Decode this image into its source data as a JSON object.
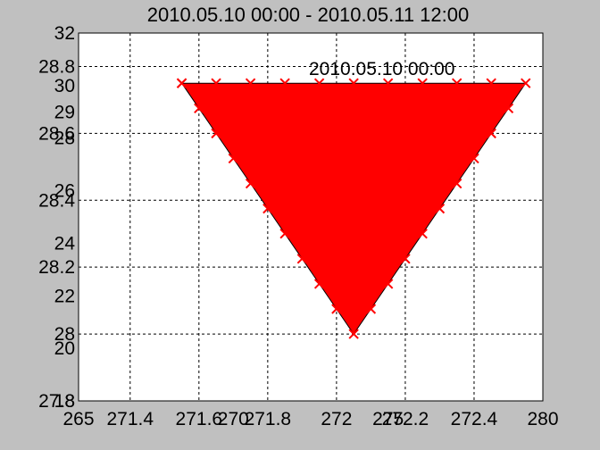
{
  "chart_data": {
    "type": "area",
    "title": "2010.05.10 00:00 - 2010.05.11 12:00",
    "annotation": "2010.05.10 00:00",
    "fill_color": "#ff0000",
    "marker_color": "#ff0000",
    "background_color": "#ffffff",
    "figure_color": "#c0c0c0",
    "grid": true,
    "axes_overlaid": true,
    "axis_a": {
      "xlim": [
        265,
        280
      ],
      "ylim": [
        18,
        32
      ],
      "xticks": [
        265,
        270,
        275,
        280
      ],
      "yticks": [
        18,
        20,
        22,
        24,
        26,
        28,
        29,
        30,
        32
      ]
    },
    "axis_b": {
      "xlim": [
        271.25,
        272.6
      ],
      "ylim": [
        27.8,
        28.9
      ],
      "xticks": [
        271.4,
        271.6,
        271.8,
        272,
        272.2,
        272.4
      ],
      "yticks": [
        27.8,
        28,
        28.2,
        28.4,
        28.6,
        28.8
      ]
    },
    "series": [
      {
        "x": [
          271.55,
          271.65,
          271.75,
          271.85,
          271.95,
          272.05,
          272.15,
          272.25,
          272.35,
          272.45,
          272.55,
          272.5,
          272.45,
          272.4,
          272.35,
          272.3,
          272.25,
          272.2,
          272.15,
          272.1,
          272.05,
          272.0,
          271.95,
          271.9,
          271.85,
          271.8,
          271.75,
          271.7,
          271.65,
          271.6,
          271.55
        ],
        "y": [
          28.75,
          28.75,
          28.75,
          28.75,
          28.75,
          28.75,
          28.75,
          28.75,
          28.75,
          28.75,
          28.75,
          28.675,
          28.6,
          28.525,
          28.45,
          28.375,
          28.3,
          28.225,
          28.15,
          28.075,
          28.0,
          28.075,
          28.15,
          28.225,
          28.3,
          28.375,
          28.45,
          28.525,
          28.6,
          28.675,
          28.75
        ]
      }
    ]
  }
}
